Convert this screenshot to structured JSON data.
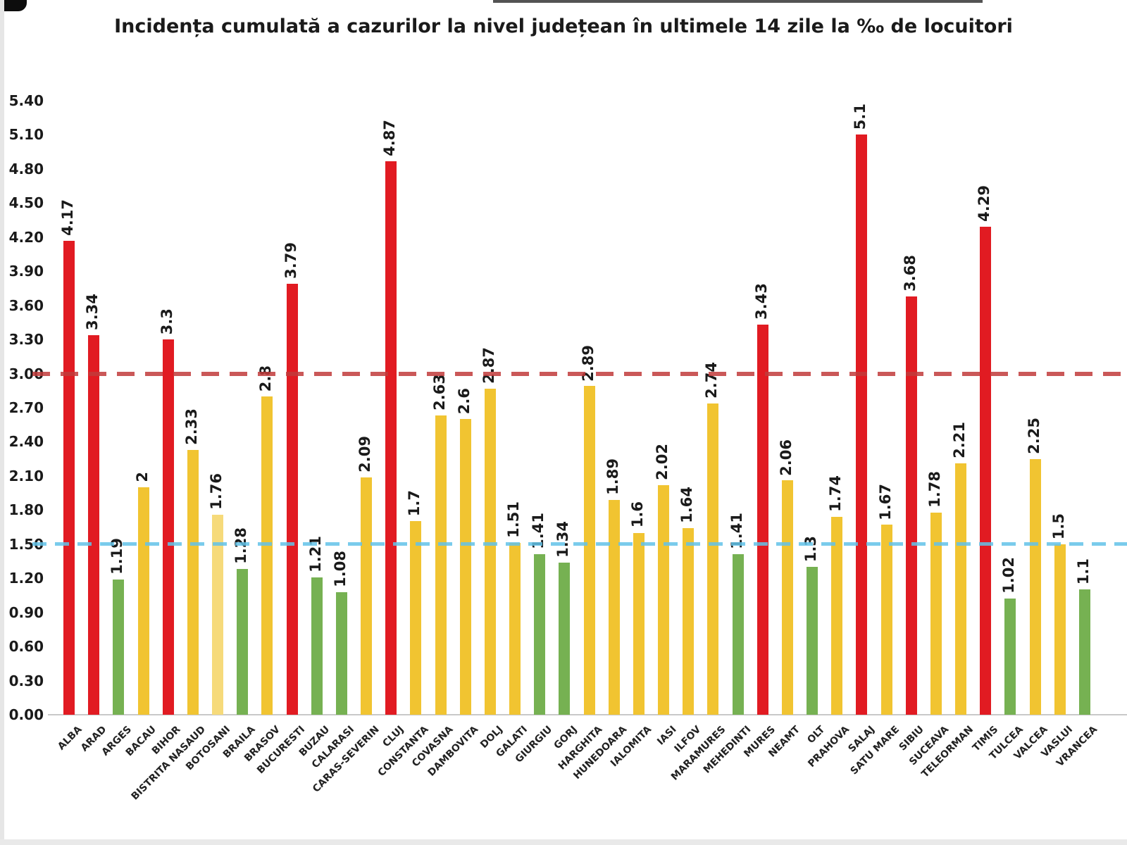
{
  "page": {
    "title": "Incidența cumulată a cazurilor la nivel județean în ultimele 14 zile la ‰ de locuitori"
  },
  "chart_data": {
    "type": "bar",
    "title": "Incidența cumulată a cazurilor la nivel județean în ultimele 14 zile la ‰ de locuitori",
    "xlabel": "",
    "ylabel": "",
    "ylim": [
      0,
      5.4
    ],
    "ytick_step": 0.3,
    "ytick_labels": [
      "0.00",
      "0.30",
      "0.60",
      "0.90",
      "1.20",
      "1.50",
      "1.80",
      "2.10",
      "2.40",
      "2.70",
      "3.00",
      "3.30",
      "3.60",
      "3.90",
      "4.20",
      "4.50",
      "4.80",
      "5.10",
      "5.40"
    ],
    "grid": "off",
    "legend": "none",
    "categories": [
      "ALBA",
      "ARAD",
      "ARGES",
      "BACAU",
      "BIHOR",
      "BISTRITA NASAUD",
      "BOTOSANI",
      "BRAILA",
      "BRASOV",
      "BUCURESTI",
      "BUZAU",
      "CALARASI",
      "CARAS-SEVERIN",
      "CLUJ",
      "CONSTANTA",
      "COVASNA",
      "DAMBOVITA",
      "DOLJ",
      "GALATI",
      "GIURGIU",
      "GORJ",
      "HARGHITA",
      "HUNEDOARA",
      "IALOMITA",
      "IASI",
      "ILFOV",
      "MARAMURES",
      "MEHEDINTI",
      "MURES",
      "NEAMT",
      "OLT",
      "PRAHOVA",
      "SALAJ",
      "SATU MARE",
      "SIBIU",
      "SUCEAVA",
      "TELEORMAN",
      "TIMIS",
      "TULCEA",
      "VALCEA",
      "VASLUI",
      "VRANCEA"
    ],
    "values": [
      4.17,
      3.34,
      1.19,
      2,
      3.3,
      2.33,
      1.76,
      1.28,
      2.8,
      3.79,
      1.21,
      1.08,
      2.09,
      4.87,
      1.7,
      2.63,
      2.6,
      2.87,
      1.51,
      1.41,
      1.34,
      2.89,
      1.89,
      1.6,
      2.02,
      1.64,
      2.74,
      1.41,
      3.43,
      2.06,
      1.3,
      1.74,
      5.1,
      1.67,
      3.68,
      1.78,
      2.21,
      4.29,
      1.02,
      2.25,
      1.5,
      1.1
    ],
    "value_labels": [
      "4.17",
      "3.34",
      "1.19",
      "2",
      "3.3",
      "2.33",
      "1.76",
      "1.28",
      "2.8",
      "3.79",
      "1.21",
      "1.08",
      "2.09",
      "4.87",
      "1.7",
      "2.63",
      "2.6",
      "2.87",
      "1.51",
      "1.41",
      "1.34",
      "2.89",
      "1.89",
      "1.6",
      "2.02",
      "1.64",
      "2.74",
      "1.41",
      "3.43",
      "2.06",
      "1.3",
      "1.74",
      "5.1",
      "1.67",
      "3.68",
      "1.78",
      "2.21",
      "4.29",
      "1.02",
      "2.25",
      "1.5",
      "1.1"
    ],
    "bar_colors": [
      "red",
      "red",
      "green",
      "yellow",
      "red",
      "yellow",
      "yellow_pale",
      "green",
      "yellow",
      "red",
      "green",
      "green",
      "yellow",
      "red",
      "yellow",
      "yellow",
      "yellow",
      "yellow",
      "yellow",
      "green",
      "green",
      "yellow",
      "yellow",
      "yellow",
      "yellow",
      "yellow",
      "yellow",
      "green",
      "red",
      "yellow",
      "green",
      "yellow",
      "red",
      "yellow",
      "red",
      "yellow",
      "yellow",
      "red",
      "green",
      "yellow",
      "yellow",
      "green"
    ],
    "palette": {
      "red": "#e11b22",
      "yellow": "#f1c431",
      "yellow_pale": "#f6da7a",
      "green": "#76b152"
    },
    "thresholds": [
      {
        "name": "red",
        "value": 3.0,
        "color": "#c13b3b"
      },
      {
        "name": "blue",
        "value": 1.5,
        "color": "#62c2e8"
      }
    ]
  }
}
